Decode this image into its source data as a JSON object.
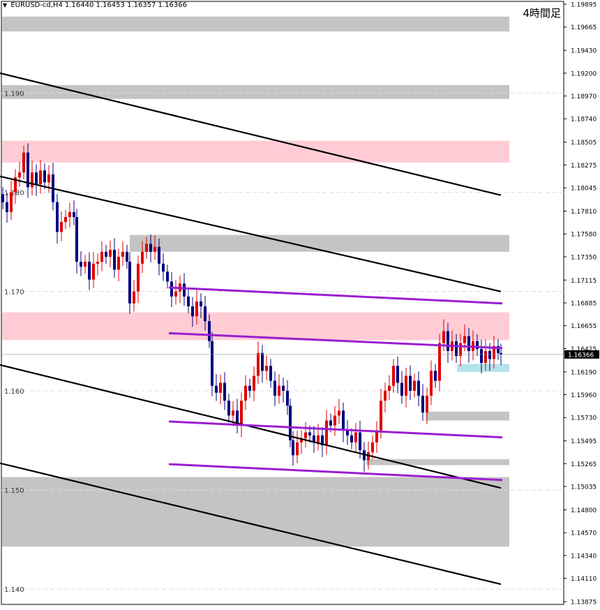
{
  "header": {
    "triangle": "▼",
    "symbol": "EURUSD-cd,H4",
    "ohlc": "1.16440 1.16453 1.16357 1.16366"
  },
  "timeframe_label": "4時間足",
  "current_price_label": "1.16366",
  "chart_data": {
    "type": "candlestick",
    "symbol": "EURUSD-cd",
    "timeframe": "H4",
    "y_axis_ticks": [
      "1.19895",
      "1.19665",
      "1.19430",
      "1.19200",
      "1.18970",
      "1.18740",
      "1.18505",
      "1.18275",
      "1.18045",
      "1.17810",
      "1.17580",
      "1.17350",
      "1.17115",
      "1.16885",
      "1.16655",
      "1.16425",
      "1.16190",
      "1.15960",
      "1.15730",
      "1.15495",
      "1.15265",
      "1.15035",
      "1.14800",
      "1.14570",
      "1.14340",
      "1.14110",
      "1.13875"
    ],
    "inner_level_labels": [
      "1.190",
      "1.180",
      "1.170",
      "1.160",
      "1.150",
      "1.140"
    ],
    "ylim": [
      1.13875,
      1.19895
    ],
    "current_price": 1.16366,
    "colors": {
      "bull": "#e00000",
      "bear": "#00007f",
      "resistance_zone": "#ffccd5",
      "neutral_zone": "#c4c4c4",
      "support_zone": "#b4e4ea",
      "channel_black": "#000000",
      "channel_purple": "#9a1ed0"
    },
    "zones": [
      {
        "type": "neutral",
        "top": 1.1977,
        "bottom": 1.1962,
        "x_end": 730
      },
      {
        "type": "neutral",
        "top": 1.1908,
        "bottom": 1.1894,
        "x_end": 730
      },
      {
        "type": "resistance",
        "top": 1.1852,
        "bottom": 1.183,
        "x_end": 730
      },
      {
        "type": "neutral",
        "top": 1.1757,
        "bottom": 1.174,
        "x_end": 730,
        "x_start": 186
      },
      {
        "type": "resistance",
        "top": 1.1679,
        "bottom": 1.1651,
        "x_end": 730
      },
      {
        "type": "support",
        "top": 1.1627,
        "bottom": 1.1619,
        "x_start": 655,
        "x_end": 730
      },
      {
        "type": "neutral",
        "top": 1.1579,
        "bottom": 1.157,
        "x_start": 610,
        "x_end": 730
      },
      {
        "type": "neutral",
        "top": 1.1531,
        "bottom": 1.1525,
        "x_start": 525,
        "x_end": 730
      },
      {
        "type": "neutral",
        "top": 1.1513,
        "bottom": 1.1443,
        "x_end": 730
      }
    ],
    "channel_lines": [
      {
        "color": "black",
        "p1": [
          0,
          1.192
        ],
        "p2": [
          718,
          1.1797
        ]
      },
      {
        "color": "black",
        "p1": [
          0,
          1.1816
        ],
        "p2": [
          718,
          1.17
        ]
      },
      {
        "color": "black",
        "p1": [
          0,
          1.1626
        ],
        "p2": [
          718,
          1.1502
        ]
      },
      {
        "color": "black",
        "p1": [
          0,
          1.1527
        ],
        "p2": [
          718,
          1.1405
        ]
      },
      {
        "color": "purple",
        "p1": [
          242,
          1.1704
        ],
        "p2": [
          720,
          1.1688
        ]
      },
      {
        "color": "purple",
        "p1": [
          242,
          1.1658
        ],
        "p2": [
          720,
          1.1643
        ]
      },
      {
        "color": "purple",
        "p1": [
          242,
          1.1569
        ],
        "p2": [
          720,
          1.1553
        ]
      },
      {
        "color": "purple",
        "p1": [
          242,
          1.1526
        ],
        "p2": [
          720,
          1.151
        ]
      }
    ],
    "candles_close_path": [
      [
        4,
        1.179
      ],
      [
        10,
        1.178
      ],
      [
        16,
        1.18
      ],
      [
        22,
        1.1815
      ],
      [
        28,
        1.182
      ],
      [
        34,
        1.184
      ],
      [
        40,
        1.1805
      ],
      [
        46,
        1.182
      ],
      [
        52,
        1.1808
      ],
      [
        58,
        1.1822
      ],
      [
        64,
        1.181
      ],
      [
        70,
        1.1818
      ],
      [
        76,
        1.179
      ],
      [
        82,
        1.176
      ],
      [
        88,
        1.177
      ],
      [
        94,
        1.1775
      ],
      [
        100,
        1.178
      ],
      [
        106,
        1.1775
      ],
      [
        110,
        1.173
      ],
      [
        116,
        1.1725
      ],
      [
        122,
        1.173
      ],
      [
        128,
        1.1712
      ],
      [
        134,
        1.1728
      ],
      [
        140,
        1.173
      ],
      [
        146,
        1.174
      ],
      [
        152,
        1.1735
      ],
      [
        158,
        1.1742
      ],
      [
        164,
        1.1722
      ],
      [
        170,
        1.1735
      ],
      [
        176,
        1.174
      ],
      [
        182,
        1.173
      ],
      [
        186,
        1.1688
      ],
      [
        192,
        1.17
      ],
      [
        198,
        1.1728
      ],
      [
        204,
        1.174
      ],
      [
        210,
        1.1748
      ],
      [
        216,
        1.174
      ],
      [
        222,
        1.1745
      ],
      [
        228,
        1.1728
      ],
      [
        234,
        1.172
      ],
      [
        240,
        1.171
      ],
      [
        246,
        1.1695
      ],
      [
        252,
        1.17
      ],
      [
        258,
        1.1708
      ],
      [
        264,
        1.1695
      ],
      [
        270,
        1.1685
      ],
      [
        276,
        1.1675
      ],
      [
        282,
        1.169
      ],
      [
        288,
        1.1685
      ],
      [
        294,
        1.167
      ],
      [
        300,
        1.165
      ],
      [
        304,
        1.1605
      ],
      [
        310,
        1.1598
      ],
      [
        316,
        1.1608
      ],
      [
        322,
        1.159
      ],
      [
        328,
        1.1575
      ],
      [
        334,
        1.158
      ],
      [
        340,
        1.1565
      ],
      [
        346,
        1.159
      ],
      [
        352,
        1.1605
      ],
      [
        358,
        1.16
      ],
      [
        364,
        1.1615
      ],
      [
        370,
        1.1638
      ],
      [
        376,
        1.162
      ],
      [
        382,
        1.1625
      ],
      [
        388,
        1.161
      ],
      [
        394,
        1.1595
      ],
      [
        400,
        1.1605
      ],
      [
        406,
        1.16
      ],
      [
        412,
        1.1585
      ],
      [
        416,
        1.155
      ],
      [
        420,
        1.1535
      ],
      [
        426,
        1.1548
      ],
      [
        432,
        1.1552
      ],
      [
        438,
        1.1558
      ],
      [
        444,
        1.1555
      ],
      [
        450,
        1.1548
      ],
      [
        456,
        1.1555
      ],
      [
        462,
        1.1545
      ],
      [
        468,
        1.157
      ],
      [
        474,
        1.1565
      ],
      [
        480,
        1.1575
      ],
      [
        486,
        1.158
      ],
      [
        492,
        1.156
      ],
      [
        498,
        1.1555
      ],
      [
        504,
        1.1548
      ],
      [
        510,
        1.1558
      ],
      [
        516,
        1.154
      ],
      [
        522,
        1.153
      ],
      [
        528,
        1.1538
      ],
      [
        534,
        1.1548
      ],
      [
        540,
        1.156
      ],
      [
        546,
        1.159
      ],
      [
        552,
        1.16
      ],
      [
        558,
        1.1605
      ],
      [
        564,
        1.1625
      ],
      [
        570,
        1.1608
      ],
      [
        576,
        1.1595
      ],
      [
        582,
        1.1615
      ],
      [
        588,
        1.16
      ],
      [
        594,
        1.161
      ],
      [
        600,
        1.1595
      ],
      [
        606,
        1.1578
      ],
      [
        612,
        1.1595
      ],
      [
        618,
        1.162
      ],
      [
        624,
        1.161
      ],
      [
        630,
        1.1648
      ],
      [
        636,
        1.166
      ],
      [
        642,
        1.164
      ],
      [
        648,
        1.165
      ],
      [
        654,
        1.1635
      ],
      [
        660,
        1.1648
      ],
      [
        666,
        1.1655
      ],
      [
        672,
        1.164
      ],
      [
        678,
        1.165
      ],
      [
        684,
        1.1642
      ],
      [
        690,
        1.1628
      ],
      [
        696,
        1.164
      ],
      [
        702,
        1.1632
      ],
      [
        708,
        1.1645
      ],
      [
        714,
        1.1638
      ],
      [
        718,
        1.16366
      ]
    ]
  }
}
